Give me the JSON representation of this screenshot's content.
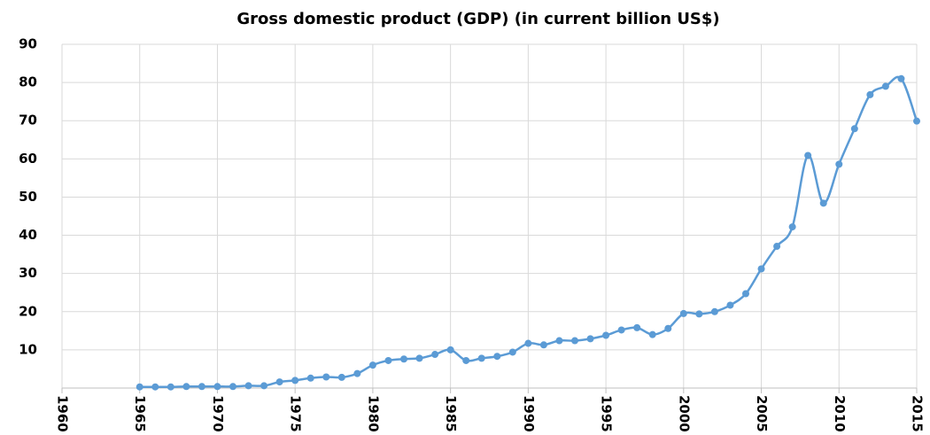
{
  "chart_data": {
    "type": "line",
    "title": "Gross domestic product (GDP) (in current billion US$)",
    "x": [
      1965,
      1966,
      1967,
      1968,
      1969,
      1970,
      1971,
      1972,
      1973,
      1974,
      1975,
      1976,
      1977,
      1978,
      1979,
      1980,
      1981,
      1982,
      1983,
      1984,
      1985,
      1986,
      1987,
      1988,
      1989,
      1990,
      1991,
      1992,
      1993,
      1994,
      1995,
      1996,
      1997,
      1998,
      1999,
      2000,
      2001,
      2002,
      2003,
      2004,
      2005,
      2006,
      2007,
      2008,
      2009,
      2010,
      2011,
      2012,
      2013,
      2014,
      2015
    ],
    "series": [
      {
        "name": "GDP",
        "color": "#5b9bd5",
        "values": [
          0.3,
          0.3,
          0.3,
          0.4,
          0.4,
          0.4,
          0.4,
          0.6,
          0.6,
          1.6,
          2.0,
          2.6,
          2.9,
          2.8,
          3.8,
          6.0,
          7.2,
          7.6,
          7.8,
          8.8,
          10.0,
          7.2,
          7.8,
          8.3,
          9.4,
          11.7,
          11.3,
          12.4,
          12.4,
          12.9,
          13.8,
          15.2,
          15.8,
          14.0,
          15.6,
          19.5,
          19.4,
          20.0,
          21.7,
          24.7,
          31.2,
          37.1,
          42.2,
          60.9,
          48.4,
          58.6,
          67.9,
          76.8,
          79.0,
          81.0,
          69.9
        ]
      }
    ],
    "xlim": [
      1960,
      2015
    ],
    "xticks": [
      1960,
      1965,
      1970,
      1975,
      1980,
      1985,
      1990,
      1995,
      2000,
      2005,
      2010,
      2015
    ],
    "ylim": [
      0,
      90
    ],
    "yticks": [
      10,
      20,
      30,
      40,
      50,
      60,
      70,
      80,
      90
    ],
    "grid": true
  }
}
